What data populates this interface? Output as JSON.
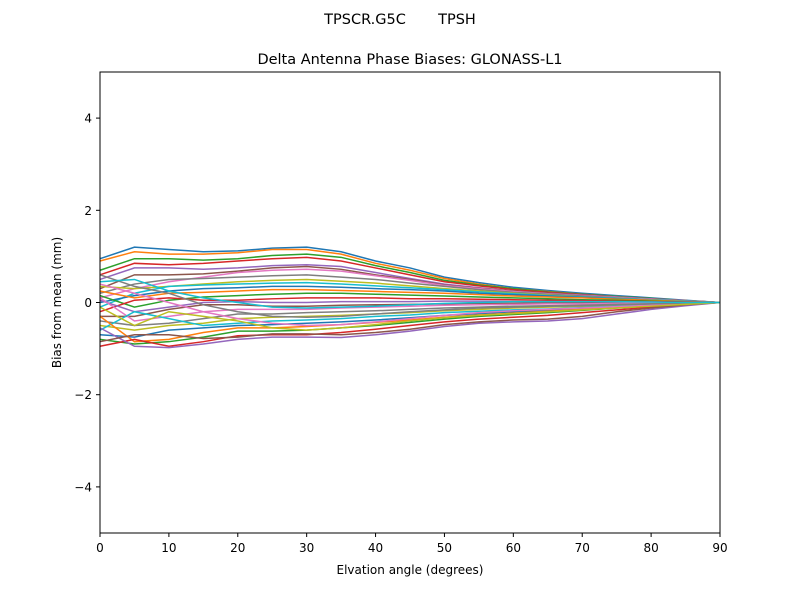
{
  "chart_data": {
    "type": "line",
    "suptitle": "TPSCR.G5C       TPSH",
    "title": "Delta Antenna Phase Biases: GLONASS-L1",
    "xlabel": "Elvation angle (degrees)",
    "ylabel": "Bias from mean (mm)",
    "xlim": [
      0,
      90
    ],
    "ylim": [
      -5,
      5
    ],
    "xticks": [
      "0",
      "10",
      "20",
      "30",
      "40",
      "50",
      "60",
      "70",
      "80",
      "90"
    ],
    "yticks": [
      "−4",
      "−2",
      "0",
      "2",
      "4"
    ],
    "grid": false,
    "colors": [
      "#1f77b4",
      "#ff7f0e",
      "#2ca02c",
      "#d62728",
      "#9467bd",
      "#8c564b",
      "#e377c2",
      "#7f7f7f",
      "#bcbd22",
      "#17becf"
    ],
    "x": [
      0,
      5,
      10,
      15,
      20,
      25,
      30,
      35,
      40,
      45,
      50,
      55,
      60,
      65,
      70,
      75,
      80,
      85,
      90
    ],
    "series": [
      {
        "values": [
          0.95,
          1.2,
          1.15,
          1.1,
          1.12,
          1.18,
          1.2,
          1.1,
          0.9,
          0.75,
          0.55,
          0.43,
          0.33,
          0.26,
          0.2,
          0.15,
          0.1,
          0.05,
          0
        ]
      },
      {
        "values": [
          0.9,
          1.1,
          1.05,
          1.05,
          1.08,
          1.15,
          1.15,
          1.05,
          0.85,
          0.7,
          0.52,
          0.4,
          0.3,
          0.24,
          0.18,
          0.13,
          0.08,
          0.04,
          0
        ]
      },
      {
        "values": [
          0.7,
          0.95,
          0.95,
          0.92,
          0.95,
          1.02,
          1.05,
          0.98,
          0.8,
          0.65,
          0.48,
          0.38,
          0.3,
          0.23,
          0.18,
          0.13,
          0.09,
          0.04,
          0
        ]
      },
      {
        "values": [
          0.6,
          0.85,
          0.82,
          0.85,
          0.9,
          0.95,
          0.98,
          0.9,
          0.75,
          0.6,
          0.45,
          0.36,
          0.28,
          0.22,
          0.17,
          0.12,
          0.08,
          0.04,
          0
        ]
      },
      {
        "values": [
          0.5,
          0.75,
          0.75,
          0.72,
          0.75,
          0.8,
          0.82,
          0.78,
          0.65,
          0.52,
          0.4,
          0.32,
          0.25,
          0.2,
          0.16,
          0.12,
          0.08,
          0.04,
          0
        ]
      },
      {
        "values": [
          0.3,
          0.6,
          0.6,
          0.62,
          0.68,
          0.75,
          0.78,
          0.72,
          0.6,
          0.5,
          0.38,
          0.31,
          0.25,
          0.2,
          0.15,
          0.11,
          0.07,
          0.03,
          0
        ]
      },
      {
        "values": [
          0.1,
          0.3,
          0.45,
          0.55,
          0.65,
          0.7,
          0.72,
          0.68,
          0.58,
          0.48,
          0.37,
          0.3,
          0.24,
          0.19,
          0.15,
          0.11,
          0.07,
          0.03,
          0
        ]
      },
      {
        "values": [
          0.2,
          0.4,
          0.5,
          0.52,
          0.55,
          0.58,
          0.6,
          0.55,
          0.5,
          0.42,
          0.35,
          0.28,
          0.22,
          0.18,
          0.14,
          0.1,
          0.06,
          0.03,
          0
        ]
      },
      {
        "values": [
          0.35,
          0.3,
          0.35,
          0.4,
          0.45,
          0.48,
          0.5,
          0.46,
          0.42,
          0.36,
          0.3,
          0.25,
          0.2,
          0.16,
          0.12,
          0.09,
          0.06,
          0.03,
          0
        ]
      },
      {
        "values": [
          -0.1,
          0.2,
          0.35,
          0.38,
          0.4,
          0.42,
          0.43,
          0.4,
          0.36,
          0.32,
          0.28,
          0.23,
          0.19,
          0.15,
          0.12,
          0.09,
          0.06,
          0.03,
          0
        ]
      },
      {
        "values": [
          0.0,
          0.15,
          0.25,
          0.3,
          0.32,
          0.35,
          0.35,
          0.33,
          0.3,
          0.28,
          0.25,
          0.2,
          0.17,
          0.14,
          0.11,
          0.08,
          0.05,
          0.02,
          0
        ]
      },
      {
        "values": [
          0.25,
          0.1,
          0.2,
          0.22,
          0.25,
          0.28,
          0.28,
          0.26,
          0.24,
          0.22,
          0.2,
          0.17,
          0.14,
          0.12,
          0.1,
          0.07,
          0.05,
          0.02,
          0
        ]
      },
      {
        "values": [
          0.15,
          -0.1,
          0.05,
          0.12,
          0.15,
          0.18,
          0.2,
          0.2,
          0.18,
          0.16,
          0.14,
          0.12,
          0.1,
          0.08,
          0.06,
          0.05,
          0.03,
          0.01,
          0
        ]
      },
      {
        "values": [
          -0.2,
          0.05,
          0.1,
          0.05,
          0.05,
          0.08,
          0.1,
          0.1,
          0.1,
          0.08,
          0.08,
          0.07,
          0.06,
          0.05,
          0.04,
          0.03,
          0.02,
          0.01,
          0
        ]
      },
      {
        "values": [
          0.05,
          -0.2,
          -0.1,
          0,
          0.02,
          0,
          0,
          0.02,
          0.02,
          0.02,
          0.03,
          0.03,
          0.02,
          0.02,
          0.02,
          0.01,
          0.01,
          0,
          0
        ]
      },
      {
        "values": [
          -0.3,
          -0.3,
          -0.15,
          -0.05,
          -0.05,
          -0.08,
          -0.08,
          -0.06,
          -0.05,
          -0.04,
          -0.03,
          -0.02,
          -0.02,
          -0.01,
          -0.01,
          -0.01,
          0,
          0,
          0
        ]
      },
      {
        "values": [
          0.1,
          -0.4,
          -0.3,
          -0.2,
          -0.15,
          -0.15,
          -0.15,
          -0.12,
          -0.1,
          -0.08,
          -0.06,
          -0.05,
          -0.04,
          -0.03,
          -0.03,
          -0.02,
          -0.01,
          0,
          0
        ]
      },
      {
        "values": [
          -0.4,
          -0.5,
          -0.45,
          -0.35,
          -0.25,
          -0.25,
          -0.22,
          -0.2,
          -0.18,
          -0.15,
          -0.12,
          -0.1,
          -0.08,
          -0.07,
          -0.06,
          -0.04,
          -0.03,
          -0.01,
          0
        ]
      },
      {
        "values": [
          -0.5,
          -0.6,
          -0.5,
          -0.45,
          -0.35,
          -0.32,
          -0.3,
          -0.28,
          -0.25,
          -0.22,
          -0.18,
          -0.15,
          -0.12,
          -0.1,
          -0.08,
          -0.06,
          -0.04,
          -0.02,
          0
        ]
      },
      {
        "values": [
          -0.6,
          -0.2,
          -0.35,
          -0.5,
          -0.45,
          -0.4,
          -0.38,
          -0.35,
          -0.3,
          -0.27,
          -0.22,
          -0.19,
          -0.16,
          -0.14,
          -0.11,
          -0.08,
          -0.05,
          -0.02,
          0
        ]
      },
      {
        "values": [
          -0.7,
          -0.75,
          -0.6,
          -0.55,
          -0.5,
          -0.48,
          -0.45,
          -0.42,
          -0.38,
          -0.33,
          -0.28,
          -0.24,
          -0.2,
          -0.17,
          -0.13,
          -0.1,
          -0.06,
          -0.03,
          0
        ]
      },
      {
        "values": [
          -0.3,
          -0.85,
          -0.8,
          -0.65,
          -0.55,
          -0.55,
          -0.52,
          -0.48,
          -0.43,
          -0.38,
          -0.32,
          -0.27,
          -0.23,
          -0.19,
          -0.15,
          -0.11,
          -0.07,
          -0.03,
          0
        ]
      },
      {
        "values": [
          -0.8,
          -0.9,
          -0.85,
          -0.75,
          -0.62,
          -0.62,
          -0.6,
          -0.55,
          -0.5,
          -0.43,
          -0.36,
          -0.3,
          -0.26,
          -0.22,
          -0.17,
          -0.12,
          -0.08,
          -0.04,
          0
        ]
      },
      {
        "values": [
          -0.95,
          -0.8,
          -0.95,
          -0.85,
          -0.72,
          -0.7,
          -0.7,
          -0.65,
          -0.58,
          -0.5,
          -0.42,
          -0.36,
          -0.32,
          -0.28,
          -0.22,
          -0.16,
          -0.1,
          -0.05,
          0
        ]
      },
      {
        "values": [
          -0.55,
          -0.95,
          -0.98,
          -0.9,
          -0.8,
          -0.75,
          -0.75,
          -0.76,
          -0.7,
          -0.62,
          -0.52,
          -0.45,
          -0.42,
          -0.4,
          -0.35,
          -0.25,
          -0.15,
          -0.07,
          0
        ]
      },
      {
        "values": [
          -0.85,
          -0.7,
          -0.7,
          -0.78,
          -0.75,
          -0.68,
          -0.68,
          -0.7,
          -0.65,
          -0.58,
          -0.48,
          -0.42,
          -0.38,
          -0.36,
          -0.3,
          -0.2,
          -0.12,
          -0.05,
          0
        ]
      },
      {
        "values": [
          0.4,
          0.2,
          0,
          -0.2,
          -0.35,
          -0.45,
          -0.5,
          -0.48,
          -0.42,
          -0.35,
          -0.28,
          -0.22,
          -0.18,
          -0.15,
          -0.12,
          -0.09,
          -0.06,
          -0.03,
          0
        ]
      },
      {
        "values": [
          0.6,
          0.35,
          0.2,
          -0.05,
          -0.2,
          -0.3,
          -0.32,
          -0.3,
          -0.25,
          -0.2,
          -0.16,
          -0.12,
          -0.1,
          -0.08,
          -0.07,
          -0.05,
          -0.03,
          -0.01,
          0
        ]
      },
      {
        "values": [
          -0.1,
          -0.5,
          -0.2,
          -0.3,
          -0.4,
          -0.55,
          -0.6,
          -0.55,
          -0.48,
          -0.4,
          -0.33,
          -0.28,
          -0.24,
          -0.2,
          -0.16,
          -0.12,
          -0.08,
          -0.04,
          0
        ]
      },
      {
        "values": [
          0.45,
          0.5,
          0.25,
          0.1,
          0,
          -0.1,
          -0.12,
          -0.1,
          -0.08,
          -0.05,
          -0.02,
          0,
          0.02,
          0.02,
          0.02,
          0.02,
          0.01,
          0,
          0
        ]
      }
    ]
  }
}
